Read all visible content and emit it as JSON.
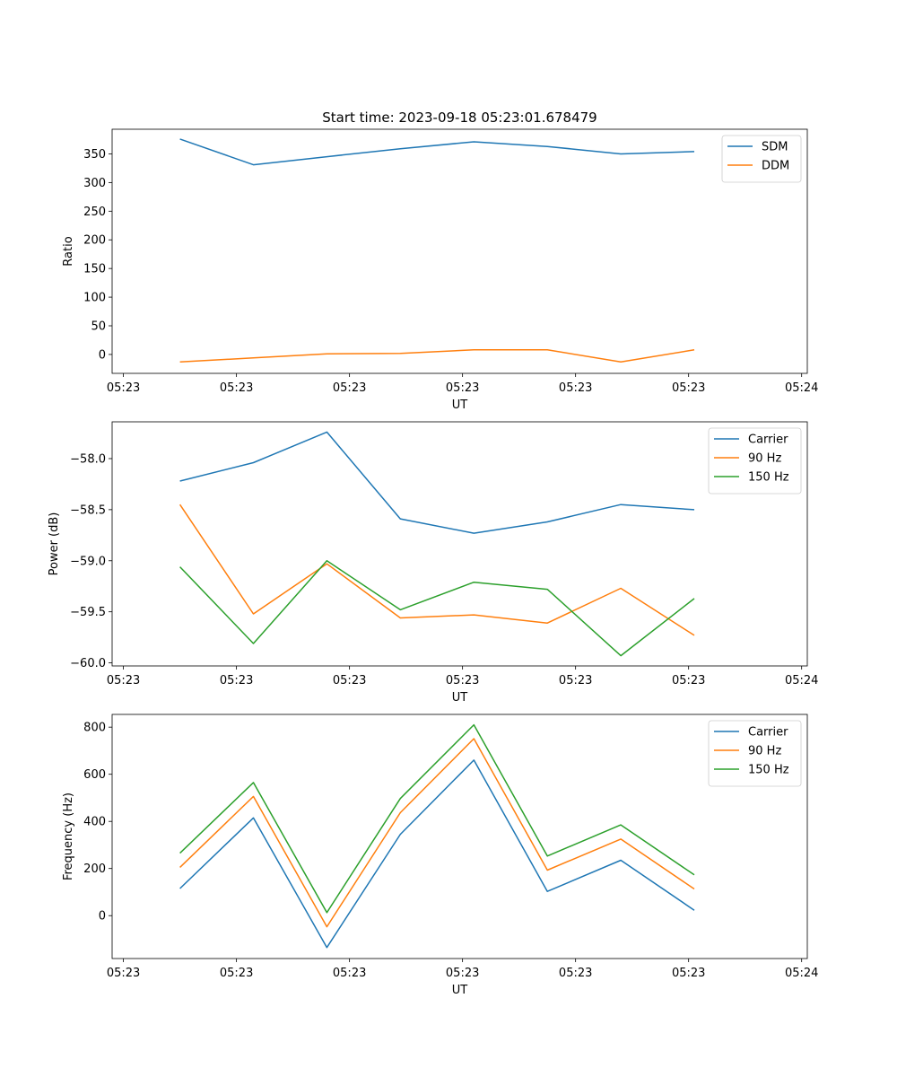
{
  "figure": {
    "title": "Start time: 2023-09-18 05:23:01.678479"
  },
  "chart_data": [
    {
      "type": "line",
      "title": "Start time: 2023-09-18 05:23:01.678479",
      "xlabel": "UT",
      "ylabel": "Ratio",
      "legend_position": "top-right",
      "grid": false,
      "xlim": [
        0,
        12.3
      ],
      "ylim": [
        -33,
        393
      ],
      "x_ticks": [
        0.2,
        2.2,
        4.2,
        6.2,
        8.2,
        10.2,
        12.2
      ],
      "x_tick_labels": [
        "05:23",
        "05:23",
        "05:23",
        "05:23",
        "05:23",
        "05:23",
        "05:24"
      ],
      "y_ticks": [
        0,
        50,
        100,
        150,
        200,
        250,
        300,
        350
      ],
      "y_tick_labels": [
        "0",
        "50",
        "100",
        "150",
        "200",
        "250",
        "300",
        "350"
      ],
      "x": [
        1.2,
        2.5,
        3.8,
        5.1,
        6.4,
        7.7,
        9.0,
        10.3
      ],
      "series": [
        {
          "name": "SDM",
          "color": "#1f77b4",
          "values": [
            376,
            331,
            345,
            359,
            371,
            363,
            350,
            354
          ]
        },
        {
          "name": "DDM",
          "color": "#ff7f0e",
          "values": [
            -13,
            -6,
            1,
            2,
            8,
            8,
            -13,
            8
          ]
        }
      ]
    },
    {
      "type": "line",
      "title": "",
      "xlabel": "UT",
      "ylabel": "Power (dB)",
      "legend_position": "top-right",
      "grid": false,
      "xlim": [
        0,
        12.3
      ],
      "ylim": [
        -60.03,
        -57.64
      ],
      "x_ticks": [
        0.2,
        2.2,
        4.2,
        6.2,
        8.2,
        10.2,
        12.2
      ],
      "x_tick_labels": [
        "05:23",
        "05:23",
        "05:23",
        "05:23",
        "05:23",
        "05:23",
        "05:24"
      ],
      "y_ticks": [
        -60.0,
        -59.5,
        -59.0,
        -58.5,
        -58.0
      ],
      "y_tick_labels": [
        "−60.0",
        "−59.5",
        "−59.0",
        "−58.5",
        "−58.0"
      ],
      "x": [
        1.2,
        2.5,
        3.8,
        5.1,
        6.4,
        7.7,
        9.0,
        10.3
      ],
      "series": [
        {
          "name": "Carrier",
          "color": "#1f77b4",
          "values": [
            -58.22,
            -58.04,
            -57.74,
            -58.59,
            -58.73,
            -58.62,
            -58.45,
            -58.5
          ]
        },
        {
          "name": "90 Hz",
          "color": "#ff7f0e",
          "values": [
            -58.45,
            -59.52,
            -59.03,
            -59.56,
            -59.53,
            -59.61,
            -59.27,
            -59.73
          ]
        },
        {
          "name": "150 Hz",
          "color": "#2ca02c",
          "values": [
            -59.06,
            -59.81,
            -59.0,
            -59.48,
            -59.21,
            -59.28,
            -59.93,
            -59.37
          ]
        }
      ]
    },
    {
      "type": "line",
      "title": "",
      "xlabel": "UT",
      "ylabel": "Frequency (Hz)",
      "legend_position": "top-right",
      "grid": false,
      "xlim": [
        0,
        12.3
      ],
      "ylim": [
        -182,
        854
      ],
      "x_ticks": [
        0.2,
        2.2,
        4.2,
        6.2,
        8.2,
        10.2,
        12.2
      ],
      "x_tick_labels": [
        "05:23",
        "05:23",
        "05:23",
        "05:23",
        "05:23",
        "05:23",
        "05:24"
      ],
      "y_ticks": [
        0,
        200,
        400,
        600,
        800
      ],
      "y_tick_labels": [
        "0",
        "200",
        "400",
        "600",
        "800"
      ],
      "x": [
        1.2,
        2.5,
        3.8,
        5.1,
        6.4,
        7.7,
        9.0,
        10.3
      ],
      "series": [
        {
          "name": "Carrier",
          "color": "#1f77b4",
          "values": [
            115,
            415,
            -135,
            345,
            660,
            103,
            235,
            23
          ]
        },
        {
          "name": "90 Hz",
          "color": "#ff7f0e",
          "values": [
            205,
            506,
            -47,
            437,
            751,
            193,
            325,
            113
          ]
        },
        {
          "name": "150 Hz",
          "color": "#2ca02c",
          "values": [
            265,
            565,
            13,
            497,
            810,
            253,
            385,
            173
          ]
        }
      ]
    }
  ]
}
